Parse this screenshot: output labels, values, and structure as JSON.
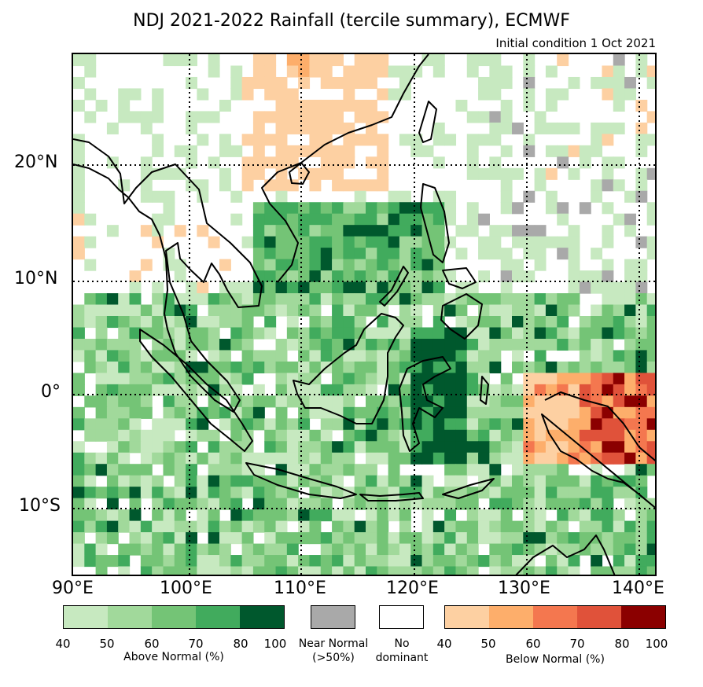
{
  "title": "NDJ 2021-2022 Rainfall (tercile summary), ECMWF",
  "subtitle": "Initial condition 1 Oct 2021",
  "lat_labels": [
    "20°N",
    "10°N",
    "0°",
    "10°S"
  ],
  "lon_labels": [
    "90°E",
    "100°E",
    "110°E",
    "120°E",
    "130°E",
    "140°E"
  ],
  "legend": {
    "above_normal": {
      "label": "Above Normal (%)",
      "ticks": [
        "40",
        "50",
        "60",
        "70",
        "80",
        "100"
      ],
      "colors": [
        "#c7e9c0",
        "#a1d99b",
        "#74c476",
        "#41ab5d",
        "#00582d"
      ]
    },
    "near_normal": {
      "label_line1": "Near Normal",
      "label_line2": "(>50%)",
      "color": "#a9a9a9"
    },
    "no_dominant": {
      "label_line1": "No",
      "label_line2": "dominant",
      "color": "#ffffff"
    },
    "below_normal": {
      "label": "Below Normal (%)",
      "ticks": [
        "40",
        "50",
        "60",
        "70",
        "80",
        "100"
      ],
      "colors": [
        "#fdd0a2",
        "#fdae6b",
        "#f4774f",
        "#e0523a",
        "#8b0000"
      ]
    }
  }
}
